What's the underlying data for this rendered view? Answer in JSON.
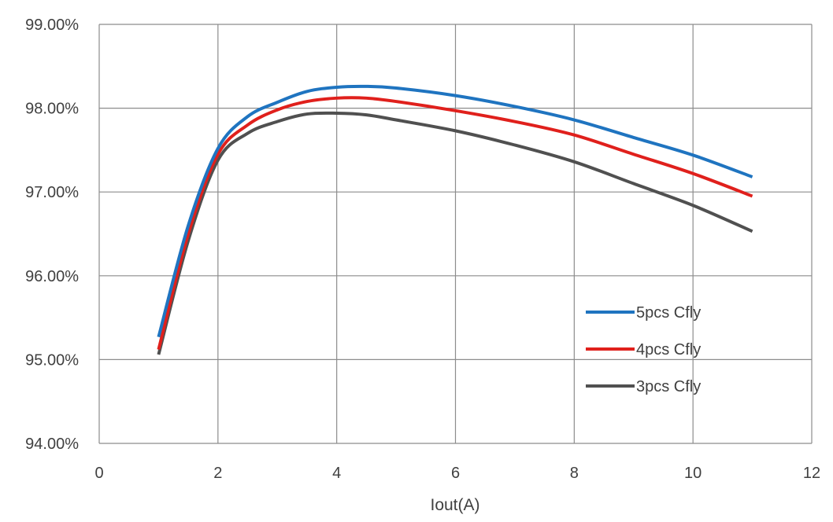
{
  "chart_data": {
    "type": "line",
    "title": "",
    "xlabel": "Iout(A)",
    "ylabel": "",
    "xlim": [
      0,
      12
    ],
    "ylim": [
      94.0,
      99.0
    ],
    "x_ticks": [
      0,
      2,
      4,
      6,
      8,
      10,
      12
    ],
    "y_ticks": [
      94.0,
      95.0,
      96.0,
      97.0,
      98.0,
      99.0
    ],
    "x_tick_labels": [
      "0",
      "2",
      "4",
      "6",
      "8",
      "10",
      "12"
    ],
    "y_tick_labels": [
      "94.00%",
      "95.00%",
      "96.00%",
      "97.00%",
      "98.00%",
      "99.00%"
    ],
    "grid": true,
    "legend_position": "right-middle",
    "x": [
      1,
      1.5,
      2,
      2.5,
      3,
      3.5,
      4,
      4.5,
      5,
      6,
      7,
      8,
      9,
      10,
      11
    ],
    "series": [
      {
        "name": "5pcs Cfly",
        "color": "#1F74C0",
        "values": [
          95.27,
          96.6,
          97.52,
          97.9,
          98.07,
          98.2,
          98.25,
          98.26,
          98.24,
          98.15,
          98.02,
          97.86,
          97.65,
          97.44,
          97.18
        ]
      },
      {
        "name": "4pcs Cfly",
        "color": "#E0201C",
        "values": [
          95.12,
          96.5,
          97.45,
          97.8,
          97.98,
          98.08,
          98.12,
          98.12,
          98.08,
          97.97,
          97.84,
          97.68,
          97.45,
          97.22,
          96.95
        ]
      },
      {
        "name": "3pcs Cfly",
        "color": "#505050",
        "values": [
          95.06,
          96.42,
          97.38,
          97.7,
          97.84,
          97.93,
          97.94,
          97.92,
          97.86,
          97.73,
          97.56,
          97.36,
          97.1,
          96.84,
          96.53
        ]
      }
    ]
  }
}
